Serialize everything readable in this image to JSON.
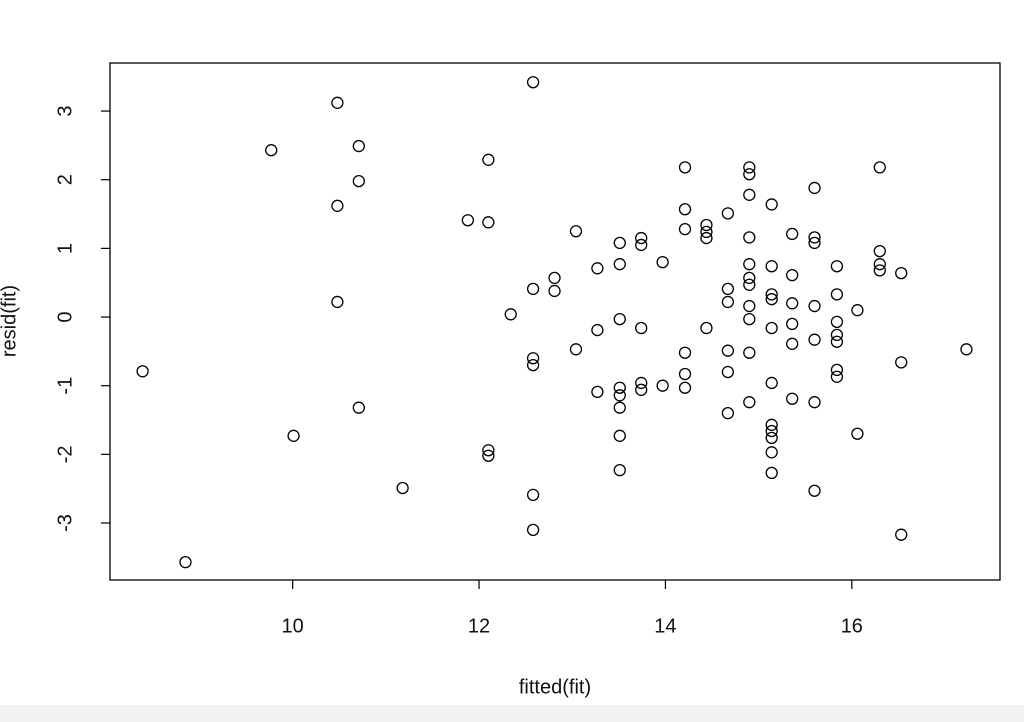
{
  "chart_data": {
    "type": "scatter",
    "xlabel": "fitted(fit)",
    "ylabel": "resid(fit)",
    "x": [
      8.39,
      8.85,
      9.77,
      10.01,
      10.48,
      10.48,
      10.48,
      10.71,
      10.71,
      10.71,
      11.18,
      11.88,
      12.1,
      12.1,
      12.1,
      12.1,
      12.34,
      12.58,
      12.58,
      12.58,
      12.58,
      12.58,
      12.58,
      12.81,
      12.81,
      13.04,
      13.04,
      13.27,
      13.27,
      13.27,
      13.51,
      13.51,
      13.51,
      13.51,
      13.51,
      13.51,
      13.51,
      13.51,
      13.74,
      13.74,
      13.74,
      13.74,
      13.74,
      13.97,
      13.97,
      14.21,
      14.21,
      14.21,
      14.21,
      14.21,
      14.21,
      14.44,
      14.44,
      14.44,
      14.44,
      14.67,
      14.67,
      14.67,
      14.67,
      14.67,
      14.67,
      14.9,
      14.9,
      14.9,
      14.9,
      14.9,
      14.9,
      14.9,
      14.9,
      14.9,
      14.9,
      14.9,
      15.14,
      15.14,
      15.14,
      15.14,
      15.14,
      15.14,
      15.14,
      15.14,
      15.14,
      15.14,
      15.14,
      15.36,
      15.36,
      15.36,
      15.36,
      15.36,
      15.36,
      15.6,
      15.6,
      15.6,
      15.6,
      15.6,
      15.6,
      15.6,
      15.84,
      15.84,
      15.84,
      15.84,
      15.84,
      15.84,
      15.84,
      16.06,
      16.06,
      16.3,
      16.3,
      16.3,
      16.3,
      16.53,
      16.53,
      16.53,
      17.23
    ],
    "y": [
      -0.79,
      -3.57,
      2.43,
      -1.73,
      3.12,
      1.62,
      0.22,
      2.49,
      1.98,
      -1.32,
      -2.49,
      1.41,
      2.29,
      1.38,
      -1.94,
      -2.02,
      0.04,
      3.42,
      0.41,
      -0.6,
      -0.7,
      -2.59,
      -3.1,
      0.57,
      0.38,
      1.25,
      -0.47,
      0.71,
      -0.19,
      -1.09,
      1.08,
      0.77,
      -0.03,
      -1.03,
      -1.14,
      -1.32,
      -1.73,
      -2.23,
      1.15,
      1.05,
      -0.16,
      -0.96,
      -1.06,
      0.8,
      -1.0,
      2.18,
      1.57,
      1.28,
      -0.52,
      -0.83,
      -1.03,
      1.34,
      1.24,
      1.15,
      -0.16,
      1.51,
      0.41,
      0.22,
      -0.49,
      -0.8,
      -1.4,
      2.18,
      2.08,
      1.78,
      1.16,
      0.77,
      0.57,
      0.47,
      0.16,
      -0.03,
      -0.52,
      -1.24,
      1.64,
      0.74,
      0.33,
      0.26,
      -0.16,
      -0.96,
      -1.57,
      -1.66,
      -1.76,
      -1.97,
      -2.27,
      1.21,
      0.61,
      0.2,
      -0.1,
      -0.39,
      -1.19,
      1.88,
      1.16,
      1.08,
      0.16,
      -0.33,
      -1.24,
      -2.53,
      0.74,
      0.33,
      -0.07,
      -0.26,
      -0.36,
      -0.77,
      -0.87,
      0.1,
      -1.7,
      2.18,
      0.96,
      0.77,
      0.68,
      0.64,
      -0.66,
      -3.17,
      -0.47
    ],
    "xlim": [
      8.04,
      17.59
    ],
    "ylim": [
      -3.83,
      3.7
    ],
    "xticks": [
      10,
      12,
      14,
      16
    ],
    "yticks": [
      -3,
      -2,
      -1,
      0,
      1,
      2,
      3
    ],
    "color": "#000000"
  }
}
